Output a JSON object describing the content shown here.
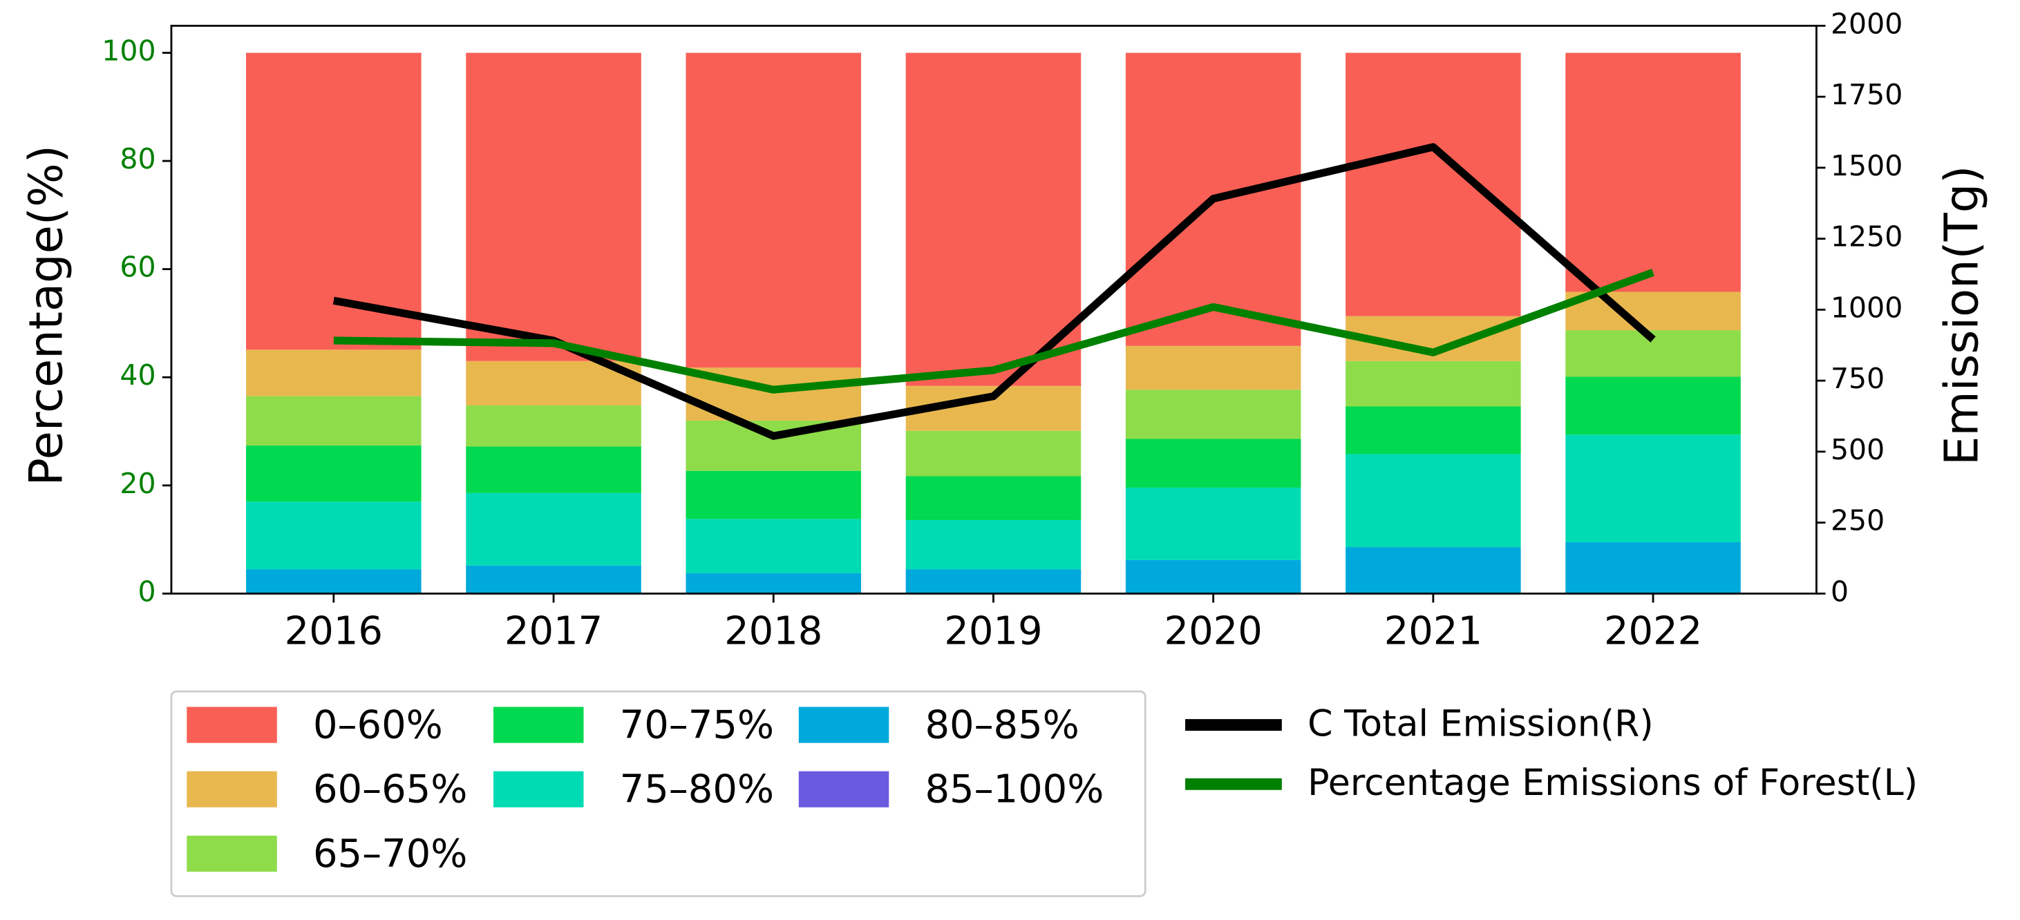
{
  "chart_data": {
    "type": "bar",
    "categories": [
      "2016",
      "2017",
      "2018",
      "2019",
      "2020",
      "2021",
      "2022"
    ],
    "y_label": "Percentage(%)",
    "y2_label": "Emission(Tg)",
    "ylim": [
      0,
      105
    ],
    "yticks": [
      0,
      20,
      40,
      60,
      80,
      100
    ],
    "y_tick_color": "#008000",
    "y2lim": [
      0,
      2000
    ],
    "y2ticks": [
      0,
      250,
      500,
      750,
      1000,
      1250,
      1500,
      1750,
      2000
    ],
    "series": [
      {
        "name": "0–60%",
        "color": "#fa5f55",
        "values": [
          54.9,
          57,
          58.2,
          61.6,
          54.2,
          48.7,
          44.2
        ]
      },
      {
        "name": "60–65%",
        "color": "#e8b84f",
        "values": [
          8.6,
          8.2,
          9.8,
          8.3,
          8.1,
          8.3,
          7.1
        ]
      },
      {
        "name": "65–70%",
        "color": "#8edc4a",
        "values": [
          9.1,
          7.6,
          9.3,
          8.4,
          9.1,
          8.4,
          8.6
        ]
      },
      {
        "name": "70–75%",
        "color": "#00d950",
        "values": [
          10.4,
          8.6,
          8.9,
          8.1,
          9,
          8.8,
          10.7
        ]
      },
      {
        "name": "75–80%",
        "color": "#00dbb4",
        "values": [
          12.5,
          13.4,
          10,
          9.1,
          13.4,
          17.2,
          19.9
        ]
      },
      {
        "name": "80–85%",
        "color": "#00a9dc",
        "values": [
          4.5,
          5.2,
          3.8,
          4.5,
          6.2,
          8.6,
          9.5
        ]
      },
      {
        "name": "85–100%",
        "color": "#6a5ae0",
        "values": [
          0,
          0,
          0,
          0,
          0,
          0,
          0
        ]
      }
    ],
    "lines": [
      {
        "name": "C Total Emission(R)",
        "color": "#000000",
        "axis": "y2",
        "values": [
          1032,
          891,
          555,
          695,
          1391,
          1573,
          895
        ]
      },
      {
        "name": "Percentage Emissions of Forest(L)",
        "color": "#008000",
        "axis": "y",
        "values": [
          46.8,
          46.3,
          37.7,
          41.3,
          53,
          44.6,
          59.4
        ]
      }
    ]
  }
}
